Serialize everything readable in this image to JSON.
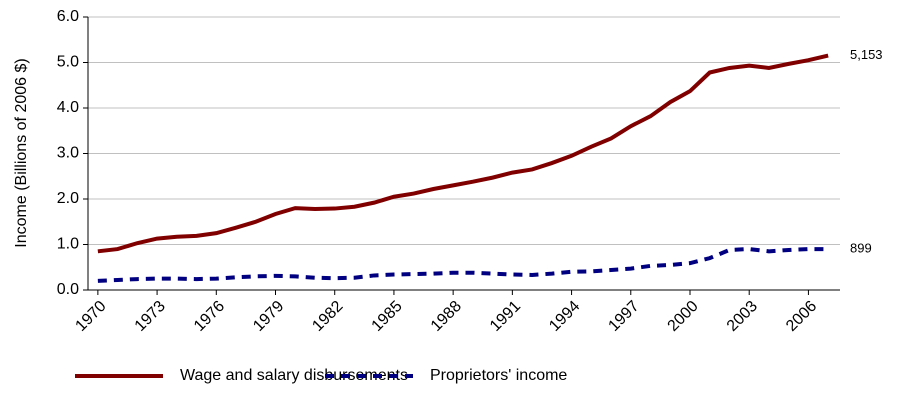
{
  "chart_data": {
    "type": "line",
    "ylabel": "Income (Billions of 2006 $)",
    "x": [
      1970,
      1971,
      1972,
      1973,
      1974,
      1975,
      1976,
      1977,
      1978,
      1979,
      1980,
      1981,
      1982,
      1983,
      1984,
      1985,
      1986,
      1987,
      1988,
      1989,
      1990,
      1991,
      1992,
      1993,
      1994,
      1995,
      1996,
      1997,
      1998,
      1999,
      2000,
      2001,
      2002,
      2003,
      2004,
      2005,
      2006,
      2007
    ],
    "series": [
      {
        "name": "Wage and salary disbursements",
        "color": "#800000",
        "dash": "solid",
        "values": [
          0.85,
          0.9,
          1.03,
          1.13,
          1.17,
          1.19,
          1.25,
          1.37,
          1.5,
          1.67,
          1.8,
          1.78,
          1.79,
          1.83,
          1.92,
          2.05,
          2.12,
          2.22,
          2.3,
          2.38,
          2.47,
          2.58,
          2.65,
          2.79,
          2.95,
          3.15,
          3.33,
          3.6,
          3.82,
          4.13,
          4.37,
          4.78,
          4.88,
          4.93,
          4.88,
          4.97,
          5.05,
          5.153
        ],
        "value_labels": [
          null,
          null,
          null,
          null,
          null,
          null,
          null,
          null,
          null,
          null,
          null,
          null,
          null,
          null,
          null,
          null,
          null,
          null,
          null,
          null,
          null,
          null,
          null,
          null,
          null,
          null,
          null,
          null,
          null,
          null,
          null,
          null,
          null,
          null,
          null,
          null,
          null,
          "5,153"
        ]
      },
      {
        "name": "Proprietors' income",
        "color": "#000080",
        "dash": "dashed",
        "values": [
          0.2,
          0.22,
          0.24,
          0.25,
          0.25,
          0.24,
          0.25,
          0.28,
          0.3,
          0.31,
          0.3,
          0.27,
          0.26,
          0.27,
          0.32,
          0.34,
          0.35,
          0.36,
          0.38,
          0.38,
          0.36,
          0.34,
          0.33,
          0.36,
          0.4,
          0.41,
          0.44,
          0.47,
          0.53,
          0.55,
          0.59,
          0.7,
          0.88,
          0.9,
          0.85,
          0.88,
          0.9,
          0.899
        ],
        "value_labels": [
          null,
          null,
          null,
          null,
          null,
          null,
          null,
          null,
          null,
          null,
          null,
          null,
          null,
          null,
          null,
          null,
          null,
          null,
          null,
          null,
          null,
          null,
          null,
          null,
          null,
          null,
          null,
          null,
          null,
          null,
          null,
          null,
          null,
          null,
          null,
          null,
          null,
          "899"
        ]
      }
    ],
    "xlim": [
      1969.5,
      2007.6
    ],
    "xticks": [
      1970,
      1973,
      1976,
      1979,
      1982,
      1985,
      1988,
      1991,
      1994,
      1997,
      2000,
      2003,
      2006
    ],
    "ylim": [
      0,
      6
    ],
    "yticks": [
      {
        "value": 0,
        "label": "0.0"
      },
      {
        "value": 1,
        "label": "1.0"
      },
      {
        "value": 2,
        "label": "2.0"
      },
      {
        "value": 3,
        "label": "3.0"
      },
      {
        "value": 4,
        "label": "4.0"
      },
      {
        "value": 5,
        "label": "5.0"
      },
      {
        "value": 6,
        "label": "6.0"
      }
    ],
    "grid": true,
    "legend": "bottom"
  }
}
